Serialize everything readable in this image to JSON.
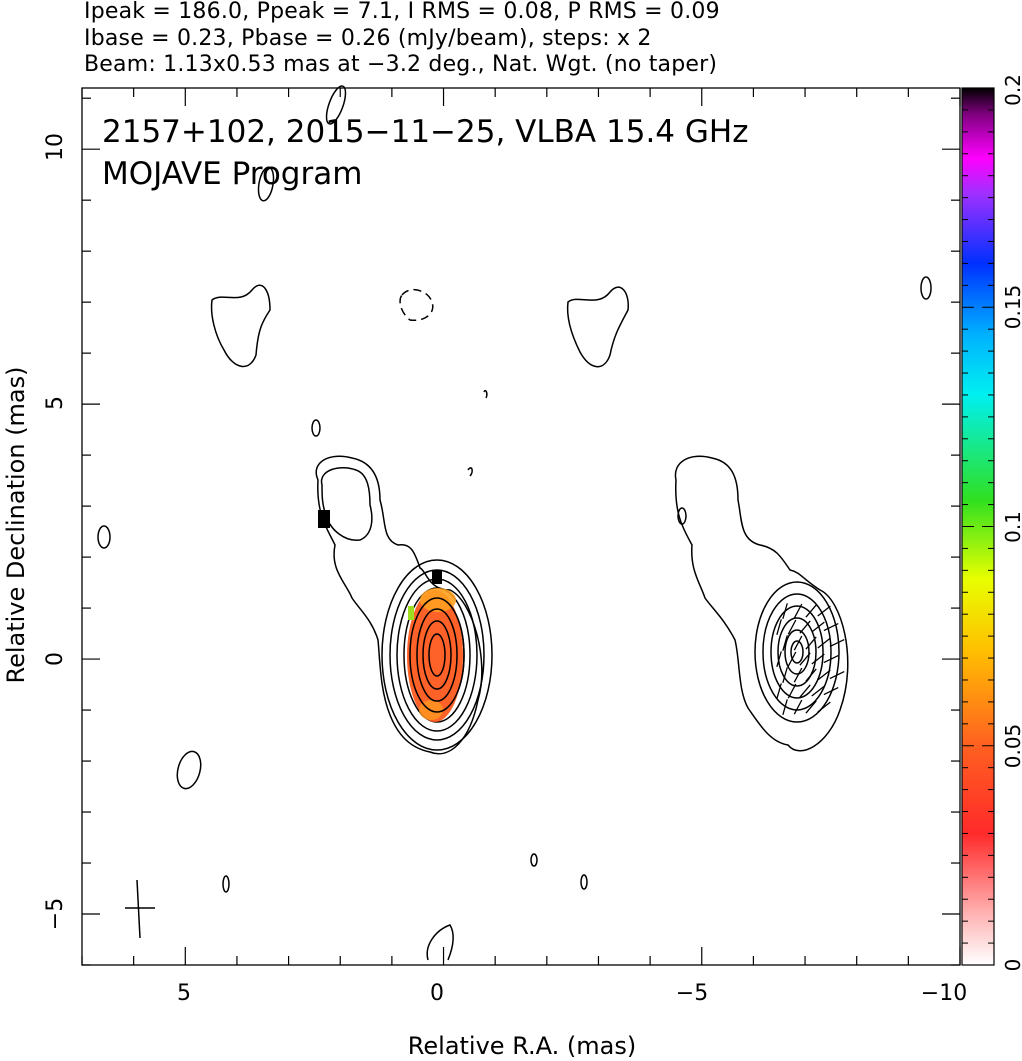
{
  "header": {
    "lines": [
      "Ipeak = 186.0, Ppeak = 7.1, I RMS = 0.08, P RMS = 0.09",
      "Ibase = 0.23, Pbase = 0.26 (mJy/beam), steps: x 2",
      "Beam: 1.13x0.53 mas at −3.2 deg., Nat. Wgt. (no taper)"
    ]
  },
  "chart_data": {
    "type": "contour",
    "title_lines": [
      "2157+102, 2015−11−25, VLBA 15.4 GHz",
      "MOJAVE Program"
    ],
    "xlabel": "Relative R.A. (mas)",
    "ylabel": "Relative Declination (mas)",
    "xlim": [
      7.0,
      -10.0
    ],
    "ylim": [
      -6.0,
      11.2
    ],
    "xticks": [
      5,
      0,
      -5,
      -10
    ],
    "xtick_labels": [
      "5",
      "0",
      "−5",
      "−10"
    ],
    "yticks": [
      -5,
      0,
      5,
      10
    ],
    "ytick_labels": [
      "−5",
      "0",
      "5",
      "10"
    ],
    "colorbar": {
      "range": [
        0,
        0.2
      ],
      "ticks": [
        0,
        0.05,
        0.1,
        0.15,
        0.2
      ],
      "tick_labels": [
        "0",
        "0.05",
        "0.1",
        "0.15",
        "0.2"
      ],
      "colormap": "rainbow"
    },
    "panels": [
      {
        "name": "total intensity with polarized intensity color",
        "core_x": 0.0,
        "core_y": 0.0
      },
      {
        "name": "total intensity with EVPA vectors",
        "core_x": -7.0,
        "core_y": 0.0
      }
    ],
    "contour_levels_count": 8,
    "core_color_value": 0.05,
    "beam": {
      "major_mas": 1.13,
      "minor_mas": 0.53,
      "pa_deg": -3.2,
      "x": 5.9,
      "y": -4.9
    }
  },
  "colors": {
    "polarized_fill": "#ff5a1e",
    "axis": "#000000"
  }
}
